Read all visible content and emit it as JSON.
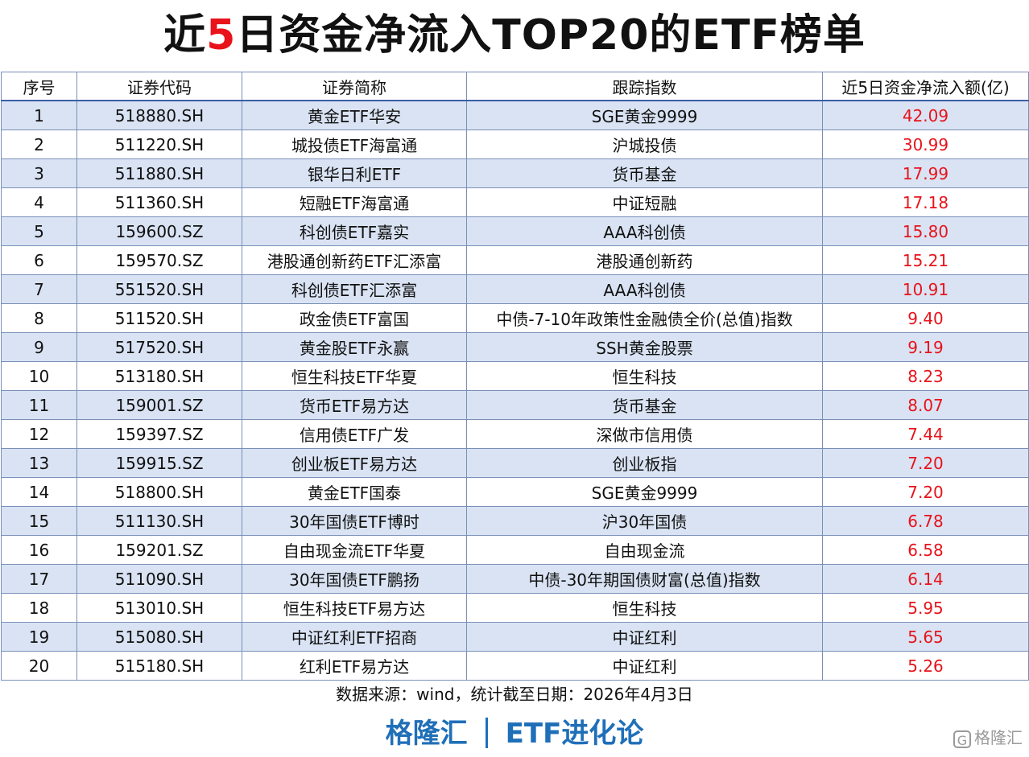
{
  "title": {
    "prefix": "近",
    "highlight": "5",
    "suffix": "日资金净流入TOP20的ETF榜单"
  },
  "table": {
    "headers": [
      "序号",
      "证券代码",
      "证券简称",
      "跟踪指数",
      "近5日资金净流入额(亿)"
    ],
    "rows": [
      [
        "1",
        "518880.SH",
        "黄金ETF华安",
        "SGE黄金9999",
        "42.09"
      ],
      [
        "2",
        "511220.SH",
        "城投债ETF海富通",
        "沪城投债",
        "30.99"
      ],
      [
        "3",
        "511880.SH",
        "银华日利ETF",
        "货币基金",
        "17.99"
      ],
      [
        "4",
        "511360.SH",
        "短融ETF海富通",
        "中证短融",
        "17.18"
      ],
      [
        "5",
        "159600.SZ",
        "科创债ETF嘉实",
        "AAA科创债",
        "15.80"
      ],
      [
        "6",
        "159570.SZ",
        "港股通创新药ETF汇添富",
        "港股通创新药",
        "15.21"
      ],
      [
        "7",
        "551520.SH",
        "科创债ETF汇添富",
        "AAA科创债",
        "10.91"
      ],
      [
        "8",
        "511520.SH",
        "政金债ETF富国",
        "中债-7-10年政策性金融债全价(总值)指数",
        "9.40"
      ],
      [
        "9",
        "517520.SH",
        "黄金股ETF永赢",
        "SSH黄金股票",
        "9.19"
      ],
      [
        "10",
        "513180.SH",
        "恒生科技ETF华夏",
        "恒生科技",
        "8.23"
      ],
      [
        "11",
        "159001.SZ",
        "货币ETF易方达",
        "货币基金",
        "8.07"
      ],
      [
        "12",
        "159397.SZ",
        "信用债ETF广发",
        "深做市信用债",
        "7.44"
      ],
      [
        "13",
        "159915.SZ",
        "创业板ETF易方达",
        "创业板指",
        "7.20"
      ],
      [
        "14",
        "518800.SH",
        "黄金ETF国泰",
        "SGE黄金9999",
        "7.20"
      ],
      [
        "15",
        "511130.SH",
        "30年国债ETF博时",
        "沪30年国债",
        "6.78"
      ],
      [
        "16",
        "159201.SZ",
        "自由现金流ETF华夏",
        "自由现金流",
        "6.58"
      ],
      [
        "17",
        "511090.SH",
        "30年国债ETF鹏扬",
        "中债-30年期国债财富(总值)指数",
        "6.14"
      ],
      [
        "18",
        "513010.SH",
        "恒生科技ETF易方达",
        "恒生科技",
        "5.95"
      ],
      [
        "19",
        "515080.SH",
        "中证红利ETF招商",
        "中证红利",
        "5.65"
      ],
      [
        "20",
        "515180.SH",
        "红利ETF易方达",
        "中证红利",
        "5.26"
      ]
    ]
  },
  "source": "数据来源：wind，统计截至日期：2026年4月3日",
  "footer": {
    "brand": "格隆汇",
    "column": "ETF进化论"
  },
  "watermark": {
    "icon": "G",
    "text": "格隆汇"
  },
  "colors": {
    "highlight": "#e8131b",
    "footer_blue": "#1f6fb8",
    "stripe": "#d9e3f3"
  }
}
